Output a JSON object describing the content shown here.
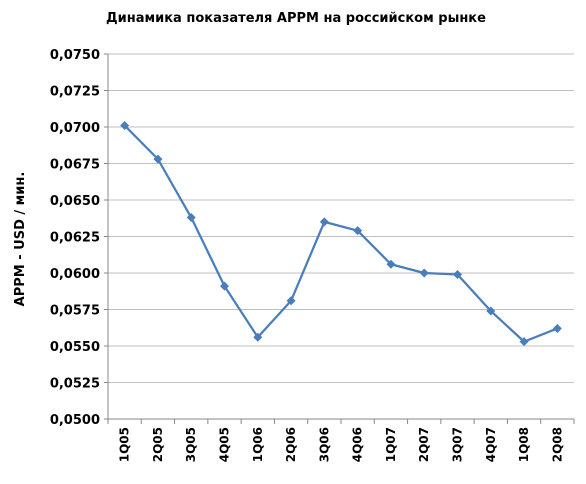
{
  "chart_data": {
    "type": "line",
    "title": "Динамика показателя APPM на российском рынке",
    "xlabel": "",
    "ylabel": "APPM - USD / мин.",
    "categories": [
      "1Q05",
      "2Q05",
      "3Q05",
      "4Q05",
      "1Q06",
      "2Q06",
      "3Q06",
      "4Q06",
      "1Q07",
      "2Q07",
      "3Q07",
      "4Q07",
      "1Q08",
      "2Q08"
    ],
    "series": [
      {
        "values": [
          0.0701,
          0.0678,
          0.0638,
          0.0591,
          0.0556,
          0.0581,
          0.0635,
          0.0629,
          0.0606,
          0.06,
          0.0599,
          0.0574,
          0.0553,
          0.0562
        ]
      }
    ],
    "ylim": [
      0.05,
      0.075
    ],
    "yticks": [
      "0,0500",
      "0,0525",
      "0,0550",
      "0,0575",
      "0,0600",
      "0,0625",
      "0,0650",
      "0,0675",
      "0,0700",
      "0,0725",
      "0,0750"
    ],
    "grid": true,
    "legend": "none",
    "line_color": "#4a7ebb",
    "grid_color": "#c0c0c0",
    "axis_color": "#888888"
  }
}
